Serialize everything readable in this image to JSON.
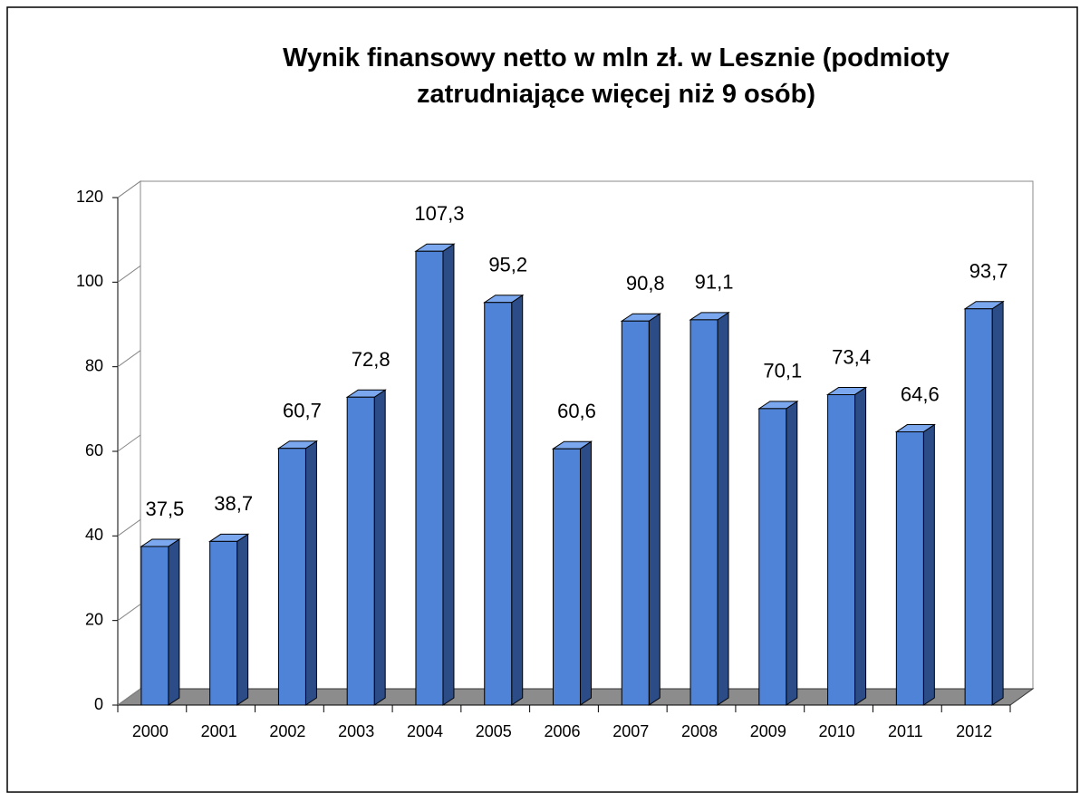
{
  "chart_data": {
    "type": "bar3d",
    "title": "Wynik finansowy netto w mln zł. w Lesznie (podmioty zatrudniające więcej niż 9 osób)",
    "categories": [
      "2000",
      "2001",
      "2002",
      "2003",
      "2004",
      "2005",
      "2006",
      "2007",
      "2008",
      "2009",
      "2010",
      "2011",
      "2012"
    ],
    "values": [
      37.5,
      38.7,
      60.7,
      72.8,
      107.3,
      95.2,
      60.6,
      90.8,
      91.1,
      70.1,
      73.4,
      64.6,
      93.7
    ],
    "value_labels": [
      "37,5",
      "38,7",
      "60,7",
      "72,8",
      "107,3",
      "95,2",
      "60,6",
      "90,8",
      "91,1",
      "70,1",
      "73,4",
      "64,6",
      "93,7"
    ],
    "color": "#4f83d8",
    "ylim": [
      0,
      120
    ],
    "yticks": [
      0,
      20,
      40,
      60,
      80,
      100,
      120
    ]
  }
}
